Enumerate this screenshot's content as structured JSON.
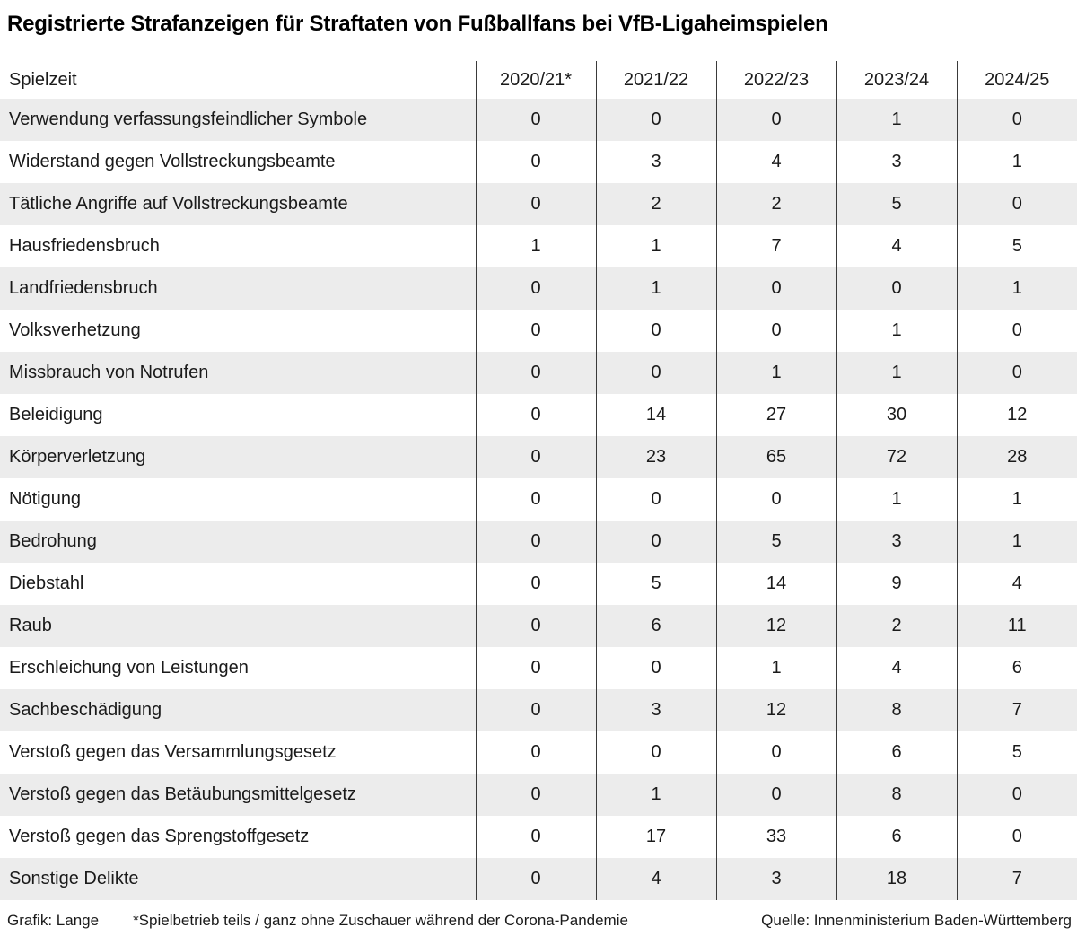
{
  "title": "Registrierte Strafanzeigen für Straftaten von Fußballfans bei VfB-Ligaheimspielen",
  "chart_data": {
    "type": "table",
    "title": "Registrierte Strafanzeigen für Straftaten von Fußballfans bei VfB-Ligaheimspielen",
    "columns": [
      "Spielzeit",
      "2020/21*",
      "2021/22",
      "2022/23",
      "2023/24",
      "2024/25"
    ],
    "rows": [
      {
        "label": "Verwendung verfassungsfeindlicher Symbole",
        "values": [
          0,
          0,
          0,
          1,
          0
        ]
      },
      {
        "label": "Widerstand gegen Vollstreckungsbeamte",
        "values": [
          0,
          3,
          4,
          3,
          1
        ]
      },
      {
        "label": "Tätliche Angriffe auf Vollstreckungsbeamte",
        "values": [
          0,
          2,
          2,
          5,
          0
        ]
      },
      {
        "label": "Hausfriedensbruch",
        "values": [
          1,
          1,
          7,
          4,
          5
        ]
      },
      {
        "label": "Landfriedensbruch",
        "values": [
          0,
          1,
          0,
          0,
          1
        ]
      },
      {
        "label": "Volksverhetzung",
        "values": [
          0,
          0,
          0,
          1,
          0
        ]
      },
      {
        "label": "Missbrauch von Notrufen",
        "values": [
          0,
          0,
          1,
          1,
          0
        ]
      },
      {
        "label": "Beleidigung",
        "values": [
          0,
          14,
          27,
          30,
          12
        ]
      },
      {
        "label": "Körperverletzung",
        "values": [
          0,
          23,
          65,
          72,
          28
        ]
      },
      {
        "label": "Nötigung",
        "values": [
          0,
          0,
          0,
          1,
          1
        ]
      },
      {
        "label": "Bedrohung",
        "values": [
          0,
          0,
          5,
          3,
          1
        ]
      },
      {
        "label": "Diebstahl",
        "values": [
          0,
          5,
          14,
          9,
          4
        ]
      },
      {
        "label": "Raub",
        "values": [
          0,
          6,
          12,
          2,
          11
        ]
      },
      {
        "label": "Erschleichung von Leistungen",
        "values": [
          0,
          0,
          1,
          4,
          6
        ]
      },
      {
        "label": "Sachbeschädigung",
        "values": [
          0,
          3,
          12,
          8,
          7
        ]
      },
      {
        "label": "Verstoß gegen das Versammlungsgesetz",
        "values": [
          0,
          0,
          0,
          6,
          5
        ]
      },
      {
        "label": "Verstoß gegen das Betäubungsmittelgesetz",
        "values": [
          0,
          1,
          0,
          8,
          0
        ]
      },
      {
        "label": "Verstoß gegen das Sprengstoffgesetz",
        "values": [
          0,
          17,
          33,
          6,
          0
        ]
      },
      {
        "label": "Sonstige Delikte",
        "values": [
          0,
          4,
          3,
          18,
          7
        ]
      }
    ]
  },
  "footer": {
    "credit": "Grafik: Lange",
    "note": "*Spielbetrieb teils / ganz ohne Zuschauer während der Corona-Pandemie",
    "source": "Quelle: Innenministerium Baden-Württemberg"
  },
  "colors": {
    "background": "#ffffff",
    "stripe": "#ececec",
    "text": "#1a1a1a",
    "divider": "#3a3a3a"
  }
}
